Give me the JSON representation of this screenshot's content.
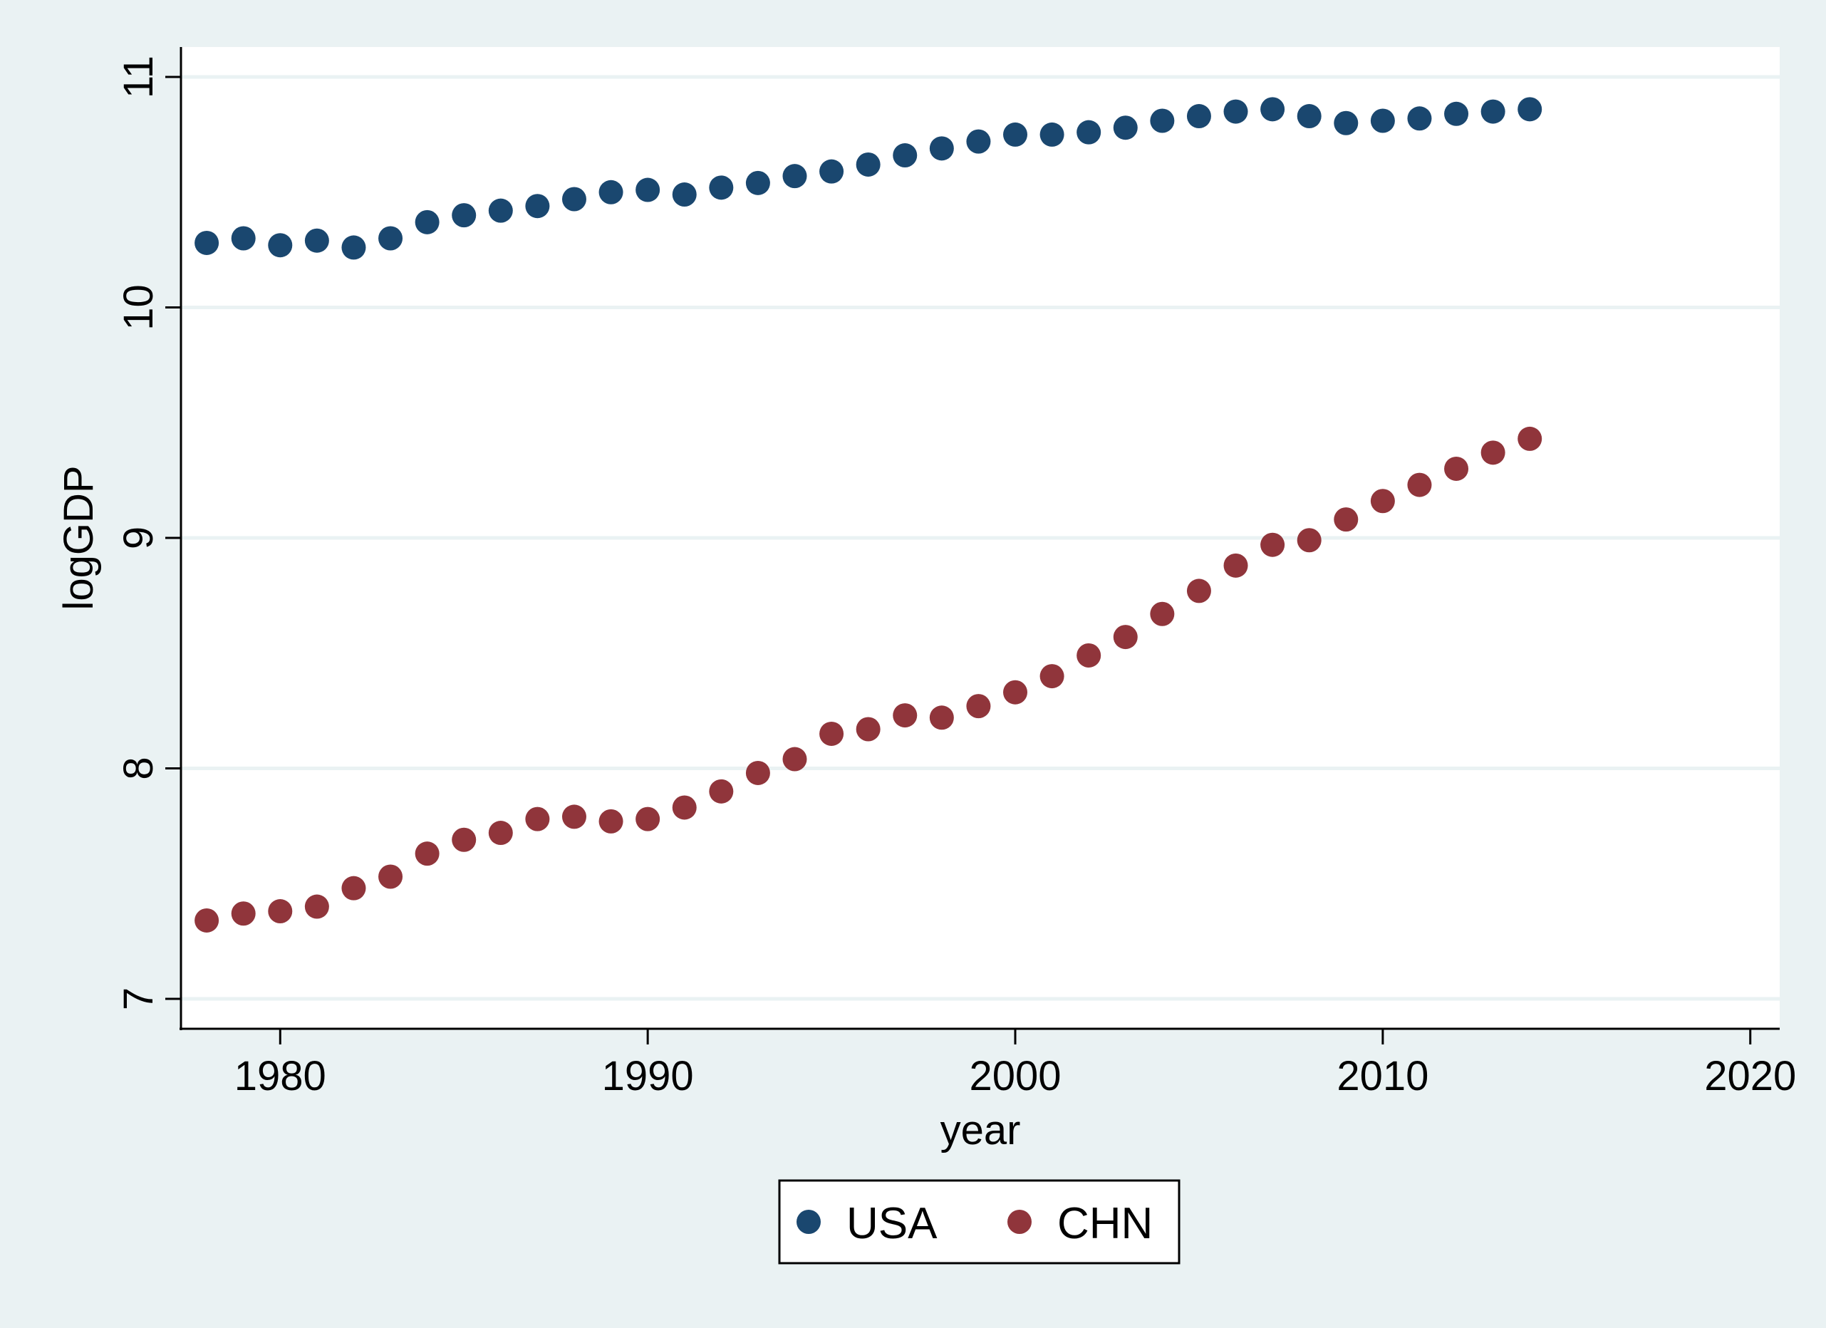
{
  "chart_data": {
    "type": "scatter",
    "title": "",
    "xlabel": "year",
    "ylabel": "logGDP",
    "xlim": [
      1977.3,
      2020.8
    ],
    "ylim": [
      6.87,
      11.13
    ],
    "xticks": [
      1980,
      1990,
      2000,
      2010,
      2020
    ],
    "yticks": [
      7,
      8,
      9,
      10,
      11
    ],
    "grid": true,
    "legend_position": "bottom",
    "x": [
      1978,
      1979,
      1980,
      1981,
      1982,
      1983,
      1984,
      1985,
      1986,
      1987,
      1988,
      1989,
      1990,
      1991,
      1992,
      1993,
      1994,
      1995,
      1996,
      1997,
      1998,
      1999,
      2000,
      2001,
      2002,
      2003,
      2004,
      2005,
      2006,
      2007,
      2008,
      2009,
      2010,
      2011,
      2012,
      2013,
      2014
    ],
    "series": [
      {
        "name": "USA",
        "color": "#1a476f",
        "values": [
          10.28,
          10.3,
          10.27,
          10.29,
          10.26,
          10.3,
          10.37,
          10.4,
          10.42,
          10.44,
          10.47,
          10.5,
          10.51,
          10.49,
          10.52,
          10.54,
          10.57,
          10.59,
          10.62,
          10.66,
          10.69,
          10.72,
          10.75,
          10.75,
          10.76,
          10.78,
          10.81,
          10.83,
          10.85,
          10.86,
          10.83,
          10.8,
          10.81,
          10.82,
          10.84,
          10.85,
          10.86
        ]
      },
      {
        "name": "CHN",
        "color": "#90353b",
        "values": [
          7.34,
          7.37,
          7.38,
          7.4,
          7.48,
          7.53,
          7.63,
          7.69,
          7.72,
          7.78,
          7.79,
          7.77,
          7.78,
          7.83,
          7.9,
          7.98,
          8.04,
          8.15,
          8.17,
          8.23,
          8.22,
          8.27,
          8.33,
          8.4,
          8.49,
          8.57,
          8.67,
          8.77,
          8.88,
          8.97,
          8.99,
          9.08,
          9.16,
          9.23,
          9.3,
          9.37,
          9.43
        ]
      }
    ]
  }
}
